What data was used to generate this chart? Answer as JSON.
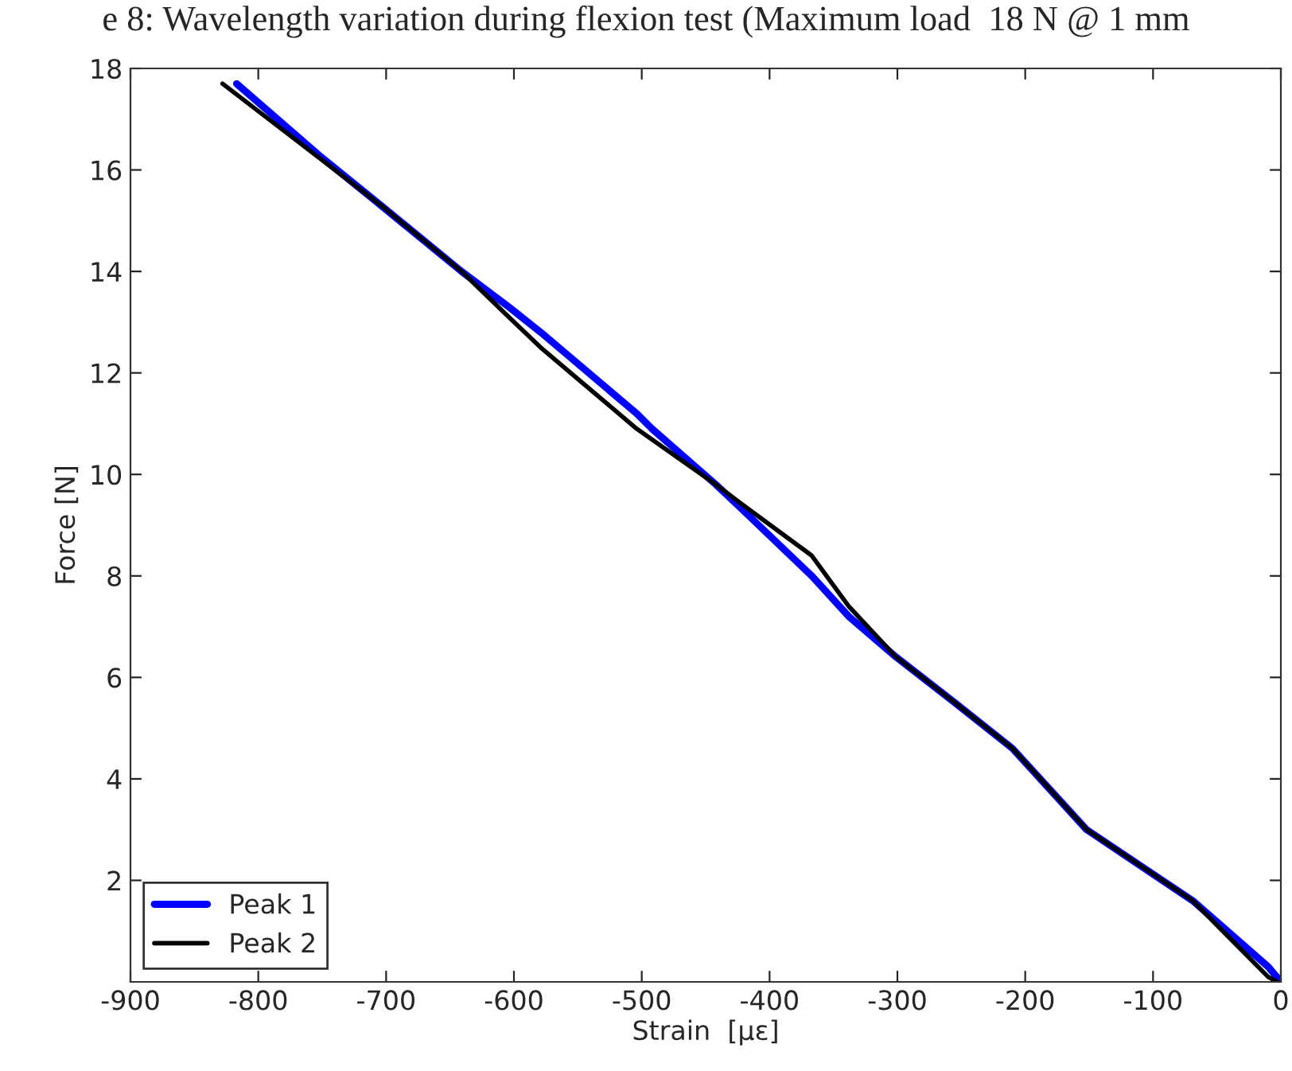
{
  "chart_data": {
    "type": "line",
    "title": "e 8: Wavelength variation during flexion test (Maximum load  18 N @ 1 mm",
    "xlabel": "Strain  [με]",
    "ylabel": "Force [N]",
    "xlim": [
      -900,
      0
    ],
    "ylim": [
      0,
      18
    ],
    "xticks": [
      -900,
      -800,
      -700,
      -600,
      -500,
      -400,
      -300,
      -200,
      -100,
      0
    ],
    "yticks": [
      2,
      4,
      6,
      8,
      10,
      12,
      14,
      16,
      18
    ],
    "grid": false,
    "legend": "bottom left",
    "marker": "none",
    "line_style": "solid",
    "series": [
      {
        "name": "Peak 1",
        "color": "#0000ff",
        "x": [
          -817,
          -753,
          -704,
          -641,
          -604,
          -579,
          -504,
          -492,
          -442,
          -421,
          -367,
          -338,
          -301,
          -255,
          -210,
          -152,
          -69,
          -10,
          0
        ],
        "values": [
          17.7,
          16.3,
          15.3,
          14.0,
          13.3,
          12.8,
          11.2,
          10.9,
          9.8,
          9.3,
          8.0,
          7.2,
          6.4,
          5.5,
          4.6,
          3.0,
          1.6,
          0.3,
          0
        ]
      },
      {
        "name": "Peak 2",
        "color": "#000000",
        "x": [
          -828,
          -753,
          -704,
          -641,
          -604,
          -579,
          -504,
          -442,
          -421,
          -367,
          -338,
          -301,
          -255,
          -210,
          -152,
          -69,
          -10,
          -3
        ],
        "values": [
          17.7,
          16.25,
          15.3,
          14.0,
          13.1,
          12.5,
          10.9,
          9.8,
          9.4,
          8.4,
          7.4,
          6.4,
          5.5,
          4.6,
          3.0,
          1.6,
          0.1,
          0
        ]
      }
    ]
  }
}
